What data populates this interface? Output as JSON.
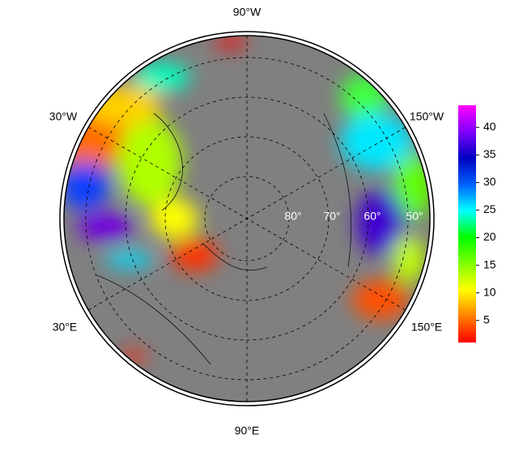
{
  "map": {
    "lon_labels": [
      "90°W",
      "30°W",
      "150°W",
      "30°E",
      "150°E",
      "90°E"
    ],
    "lat_labels": [
      "80°",
      "70°",
      "60°",
      "50°"
    ]
  },
  "colorbar": {
    "lim": [
      1,
      44
    ],
    "ticks": [
      5,
      10,
      15,
      20,
      25,
      30,
      35,
      40
    ],
    "colors": [
      "#ff0000",
      "#ff8000",
      "#ffff00",
      "#80ff00",
      "#00ff00",
      "#00ffff",
      "#0060ff",
      "#0000c0",
      "#8000ff",
      "#ff00ff"
    ]
  }
}
